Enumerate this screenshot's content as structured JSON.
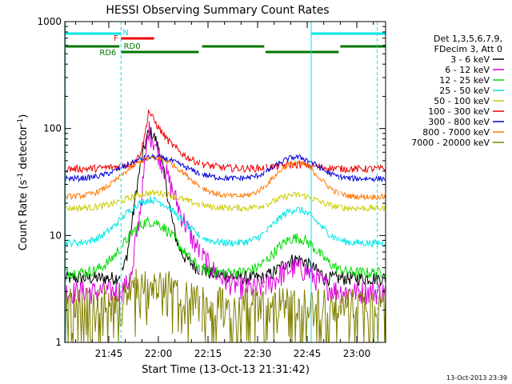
{
  "chart_data": {
    "type": "line",
    "title": "HESSI Observing Summary Count Rates",
    "xlabel": "Start Time (13-Oct-13 21:31:42)",
    "ylabel_main": "Count Rate (s",
    "ylabel_sup1": "-1",
    "ylabel_mid": " detector",
    "ylabel_sup2": "-1",
    "ylabel_end": ")",
    "yscale": "log",
    "ylim": [
      1,
      1000
    ],
    "xlim_minutes": [
      0,
      97
    ],
    "x_ticks": [
      "21:45",
      "22:00",
      "22:15",
      "22:30",
      "22:45",
      "23:00"
    ],
    "y_ticks": [
      "1",
      "10",
      "100",
      "1000"
    ],
    "legend_header": [
      "Det 1,3,5,6,7,9,",
      "FDecim 3, Att 0"
    ],
    "series": [
      {
        "name": "3 - 6 keV",
        "color": "#000000"
      },
      {
        "name": "6 - 12 keV",
        "color": "#dd00dd"
      },
      {
        "name": "12 - 25 keV",
        "color": "#00dd00"
      },
      {
        "name": "25 - 50 keV",
        "color": "#00e5e5"
      },
      {
        "name": "50 - 100 keV",
        "color": "#cccc00"
      },
      {
        "name": "100 - 300 keV",
        "color": "#ee0000"
      },
      {
        "name": "300 - 800 keV",
        "color": "#0000dd"
      },
      {
        "name": "800 - 7000 keV",
        "color": "#ff7700"
      },
      {
        "name": "7000 - 20000 keV",
        "color": "#808000"
      }
    ],
    "flag_bars": [
      {
        "label": "N",
        "color": "#00e5e5"
      },
      {
        "label": "F",
        "color": "#ee0000"
      },
      {
        "label": "RD0",
        "color": "#007700"
      },
      {
        "label": "RD6",
        "color": "#007700"
      }
    ],
    "timestamp": "13-Oct-2013 23:39"
  }
}
